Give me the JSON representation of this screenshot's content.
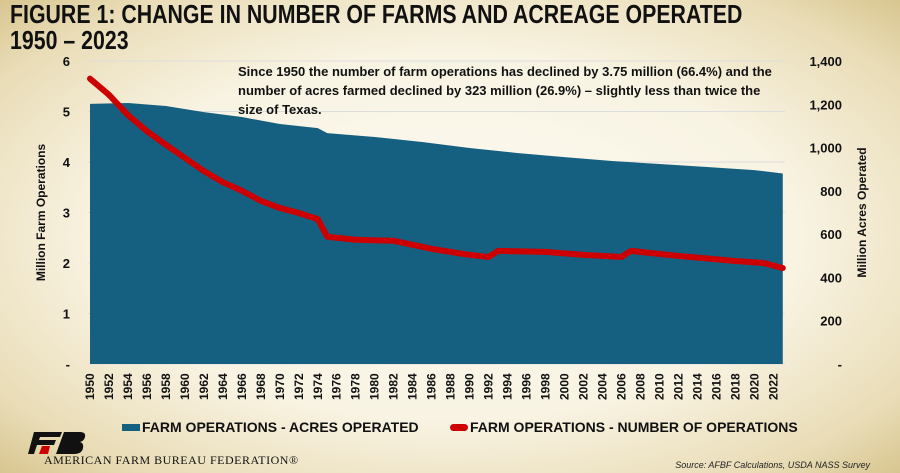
{
  "title_line1": "FIGURE 1: CHANGE IN NUMBER OF FARMS AND ACREAGE OPERATED",
  "title_line2": "1950 – 2023",
  "annotation": "Since 1950 the number of farm operations has declined by 3.75 million (66.4%) and the number of acres farmed declined by 323 million (26.9%) – slightly less than twice the size of Texas.",
  "source": "Source: AFBF Calculations,  USDA NASS Survey",
  "organization": "AMERICAN FARM BUREAU FEDERATION®",
  "colors": {
    "area": "#155f80",
    "line": "#cc0000",
    "text": "#111111"
  },
  "chart_data": {
    "type": "area+line",
    "title": "FIGURE 1: CHANGE IN NUMBER OF FARMS AND ACREAGE OPERATED 1950 – 2023",
    "ylabel_left": "Million Farm Operations",
    "ylabel_right": "Million Acres Operated",
    "ylim_left": [
      0,
      6
    ],
    "ylim_right": [
      0,
      1400
    ],
    "yticks_left": [
      "-",
      "1",
      "2",
      "3",
      "4",
      "5",
      "6"
    ],
    "yticks_right": [
      "-",
      "200",
      "400",
      "600",
      "800",
      "1,000",
      "1,200",
      "1,400"
    ],
    "xticks": [
      "1950",
      "1952",
      "1954",
      "1956",
      "1958",
      "1960",
      "1962",
      "1964",
      "1966",
      "1968",
      "1970",
      "1972",
      "1974",
      "1976",
      "1978",
      "1980",
      "1982",
      "1984",
      "1986",
      "1988",
      "1990",
      "1992",
      "1994",
      "1996",
      "1998",
      "2000",
      "2002",
      "2004",
      "2006",
      "2008",
      "2010",
      "2012",
      "2014",
      "2016",
      "2018",
      "2020",
      "2022"
    ],
    "grid": true,
    "legend_position": "bottom",
    "series": [
      {
        "name": "FARM OPERATIONS - ACRES OPERATED",
        "axis": "right",
        "type": "area",
        "x": [
          1950,
          1954,
          1958,
          1962,
          1966,
          1970,
          1974,
          1975,
          1980,
          1985,
          1990,
          1995,
          2000,
          2005,
          2010,
          2015,
          2020,
          2023
        ],
        "values": [
          1202,
          1206,
          1192,
          1164,
          1141,
          1109,
          1090,
          1067,
          1049,
          1026,
          998,
          975,
          956,
          938,
          924,
          910,
          896,
          880
        ]
      },
      {
        "name": "FARM OPERATIONS - NUMBER OF OPERATIONS",
        "axis": "left",
        "type": "line",
        "x": [
          1950,
          1952,
          1954,
          1956,
          1958,
          1960,
          1962,
          1964,
          1966,
          1968,
          1970,
          1972,
          1974,
          1975,
          1978,
          1982,
          1986,
          1990,
          1992,
          1993,
          1998,
          2002,
          2006,
          2007,
          2012,
          2018,
          2021,
          2023
        ],
        "values": [
          5.65,
          5.33,
          4.93,
          4.61,
          4.34,
          4.08,
          3.82,
          3.6,
          3.43,
          3.23,
          3.09,
          2.99,
          2.87,
          2.52,
          2.46,
          2.44,
          2.28,
          2.16,
          2.12,
          2.24,
          2.22,
          2.16,
          2.12,
          2.24,
          2.14,
          2.04,
          2.0,
          1.9
        ]
      }
    ]
  }
}
